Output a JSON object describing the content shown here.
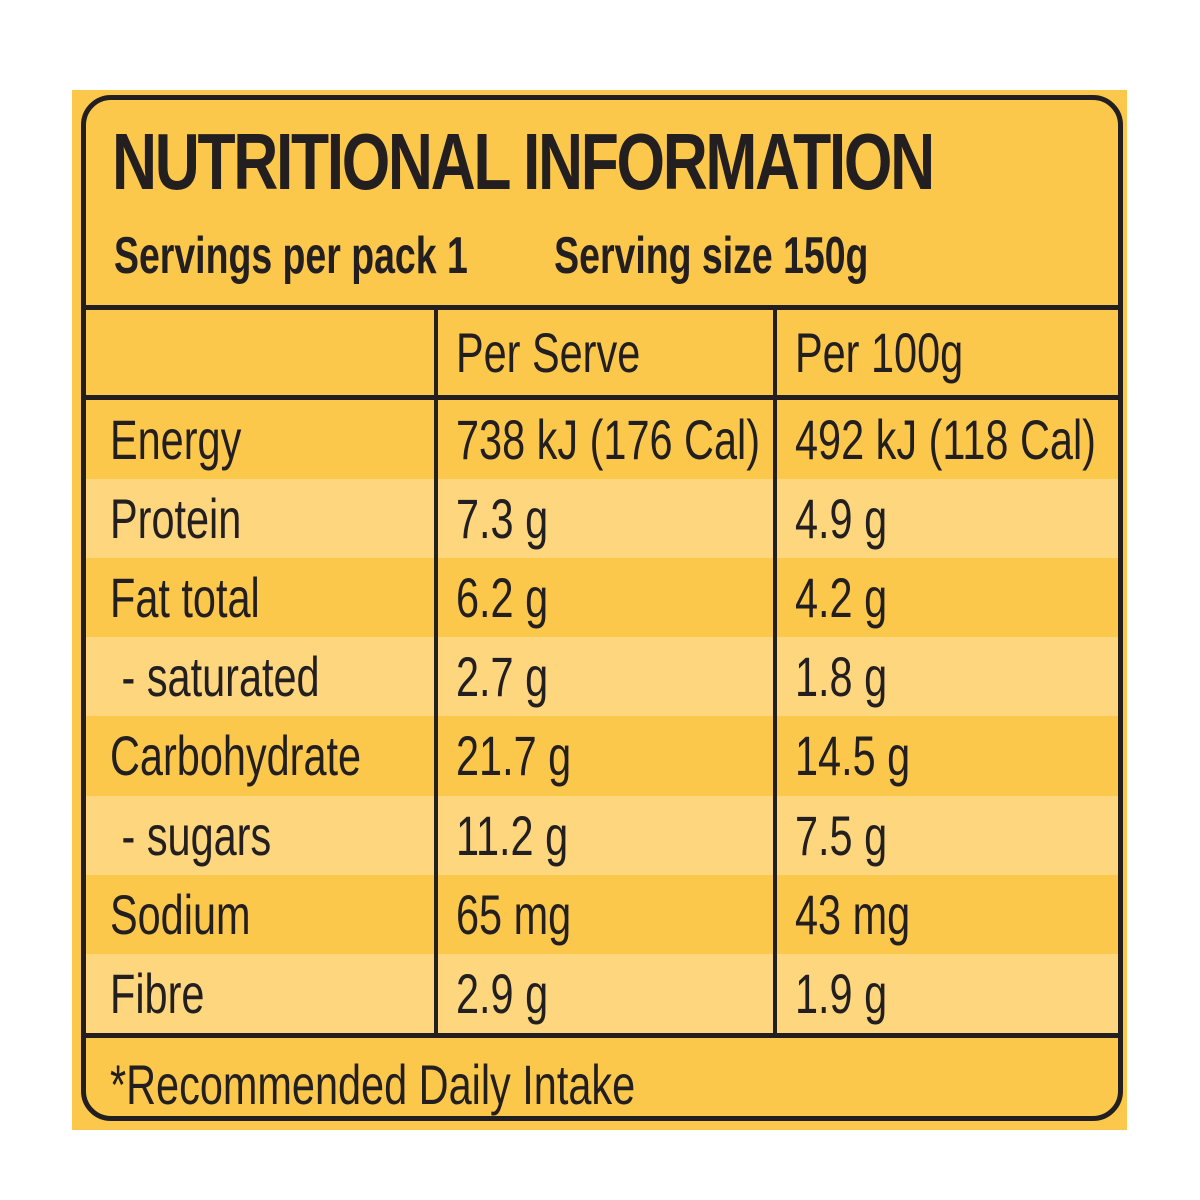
{
  "title": "NUTRITIONAL INFORMATION",
  "servings_per_pack": "Servings per pack 1",
  "serving_size": "Serving size 150g",
  "columns": [
    "",
    "Per Serve",
    "Per 100g"
  ],
  "rows": [
    {
      "label": "Energy",
      "per_serve": "738 kJ (176 Cal)",
      "per_100g": "492 kJ (118 Cal)"
    },
    {
      "label": "Protein",
      "per_serve": "7.3 g",
      "per_100g": "4.9 g"
    },
    {
      "label": "Fat total",
      "per_serve": "6.2 g",
      "per_100g": "4.2 g"
    },
    {
      "label": " - saturated",
      "per_serve": "2.7 g",
      "per_100g": "1.8 g"
    },
    {
      "label": "Carbohydrate",
      "per_serve": "21.7 g",
      "per_100g": "14.5 g"
    },
    {
      "label": " - sugars",
      "per_serve": "11.2 g",
      "per_100g": "7.5 g"
    },
    {
      "label": "Sodium",
      "per_serve": "65 mg",
      "per_100g": "43 mg"
    },
    {
      "label": "Fibre",
      "per_serve": "2.9 g",
      "per_100g": "1.9 g"
    }
  ],
  "footnote": "*Recommended Daily Intake",
  "colors": {
    "background": "#fcc84c",
    "stripe_light": "#fdd67e",
    "stripe_dark": "#fcc84c",
    "border": "#231f20"
  }
}
